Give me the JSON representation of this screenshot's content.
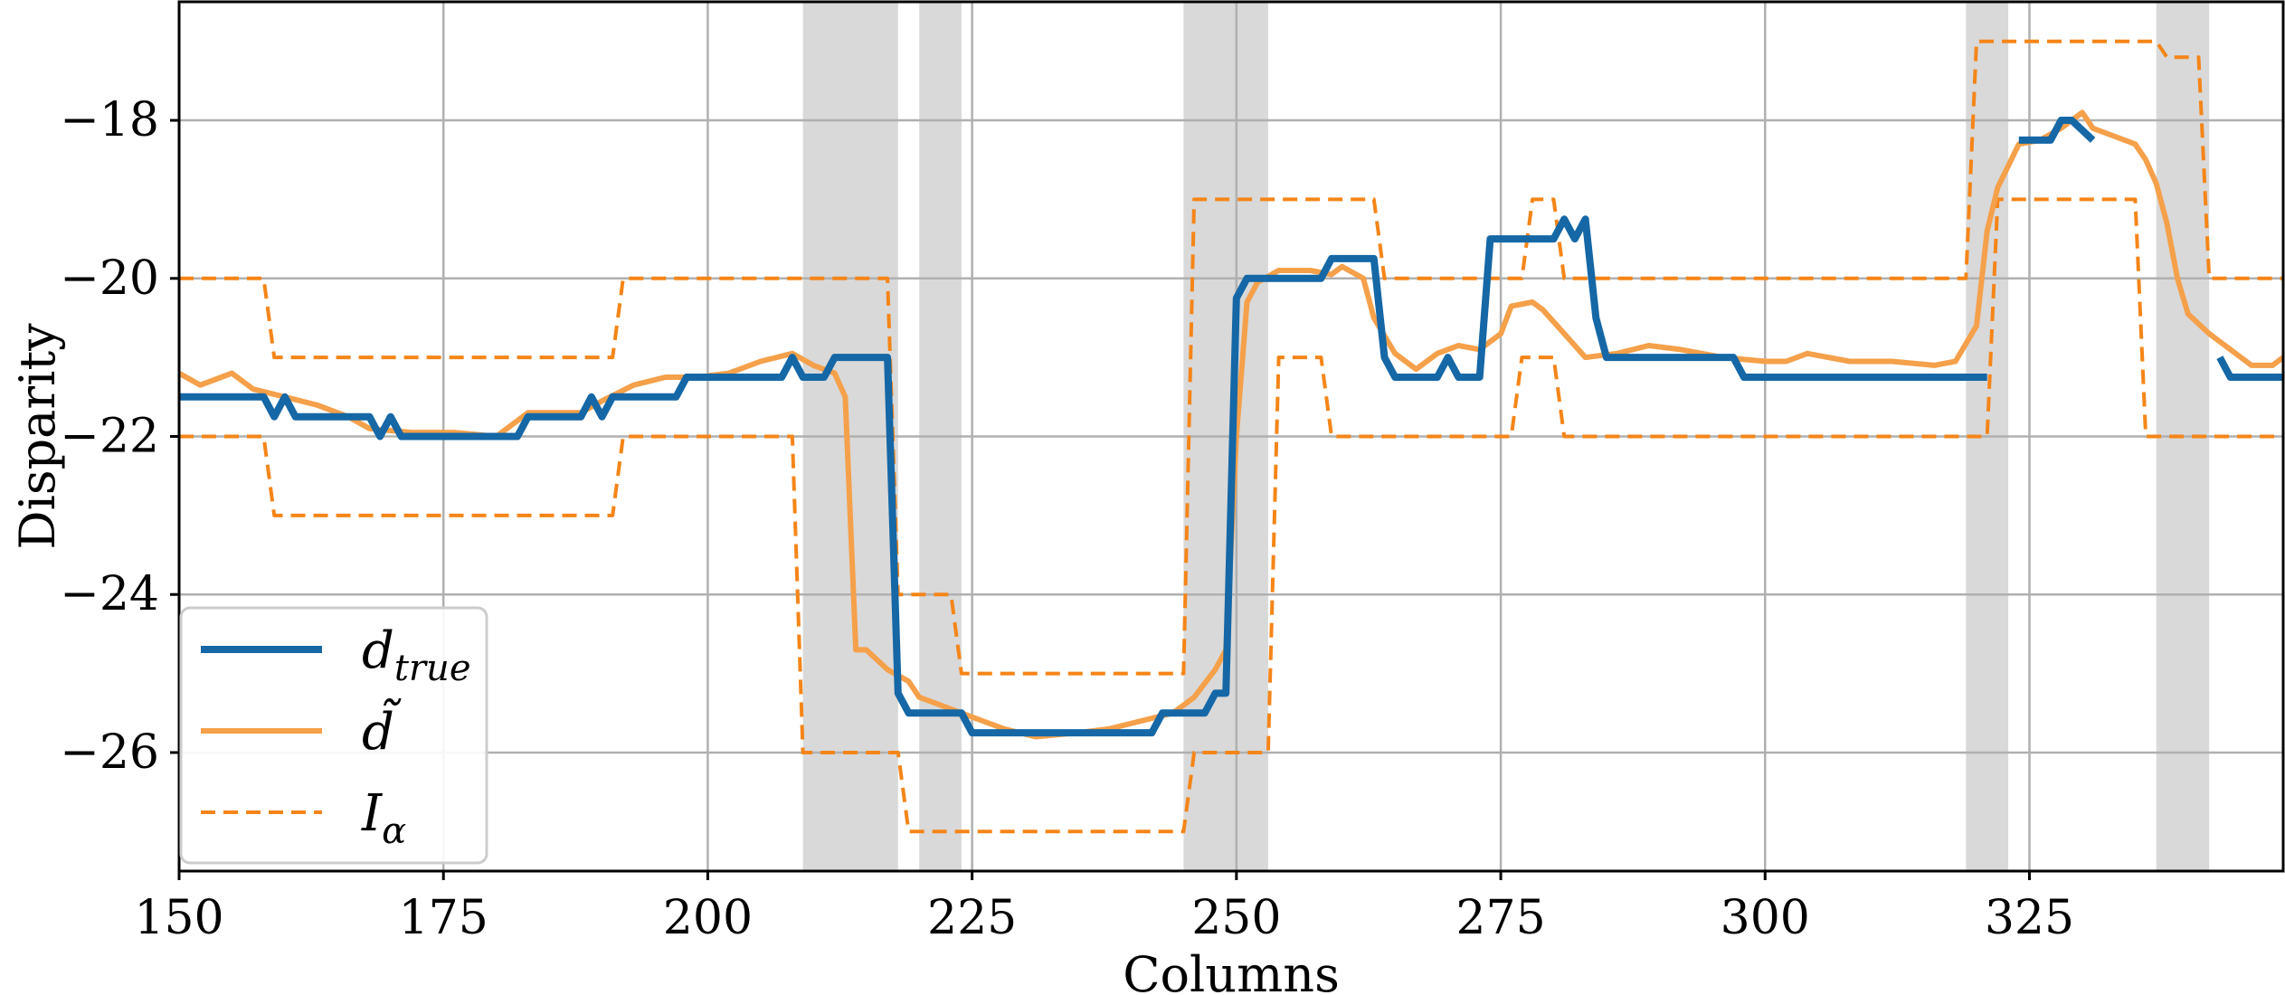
{
  "chart_data": {
    "type": "line",
    "xlabel": "Columns",
    "ylabel": "Disparity",
    "xlim": [
      150,
      349
    ],
    "ylim": [
      -27.5,
      -16.5
    ],
    "x_ticks": [
      150,
      175,
      200,
      225,
      250,
      275,
      300,
      325
    ],
    "x_tick_labels": [
      "150",
      "175",
      "200",
      "225",
      "250",
      "275",
      "300",
      "325"
    ],
    "y_ticks": [
      -26,
      -24,
      -22,
      -20,
      -18
    ],
    "y_tick_labels": [
      "−26",
      "−24",
      "−22",
      "−20",
      "−18"
    ],
    "grid": true,
    "legend_position": "lower-left",
    "colors": {
      "d_true": "#1567a6",
      "d_tilde": "#f5a04a",
      "interval": "#f58518",
      "shade": "#d9d9d9",
      "grid": "#b0b0b0"
    },
    "legend": [
      {
        "key": "d_true",
        "base": "d",
        "sub": "true",
        "style": "solid"
      },
      {
        "key": "d_tilde",
        "base": "d̃",
        "sub": "",
        "style": "solid"
      },
      {
        "key": "interval",
        "base": "I",
        "sub": "α",
        "style": "dashed"
      }
    ],
    "shaded_regions": [
      [
        209,
        218
      ],
      [
        220,
        224
      ],
      [
        245,
        253
      ],
      [
        319,
        323
      ],
      [
        337,
        342
      ]
    ],
    "series": [
      {
        "key": "d_true",
        "points": [
          [
            150,
            -21.5
          ],
          [
            158,
            -21.5
          ],
          [
            159,
            -21.75
          ],
          [
            160,
            -21.5
          ],
          [
            161,
            -21.75
          ],
          [
            168,
            -21.75
          ],
          [
            169,
            -22
          ],
          [
            170,
            -21.75
          ],
          [
            171,
            -22
          ],
          [
            182,
            -22
          ],
          [
            183,
            -21.75
          ],
          [
            188,
            -21.75
          ],
          [
            189,
            -21.5
          ],
          [
            190,
            -21.75
          ],
          [
            191,
            -21.5
          ],
          [
            197,
            -21.5
          ],
          [
            198,
            -21.25
          ],
          [
            207,
            -21.25
          ],
          [
            208,
            -21
          ],
          [
            209,
            -21.25
          ],
          [
            211,
            -21.25
          ],
          [
            212,
            -21
          ],
          [
            217,
            -21
          ],
          [
            218,
            -25.25
          ],
          [
            219,
            -25.5
          ],
          [
            224,
            -25.5
          ],
          [
            225,
            -25.75
          ],
          [
            242,
            -25.75
          ],
          [
            243,
            -25.5
          ],
          [
            247,
            -25.5
          ],
          [
            248,
            -25.25
          ],
          [
            249,
            -25.25
          ],
          [
            250,
            -20.25
          ],
          [
            251,
            -20
          ],
          [
            258,
            -20
          ],
          [
            259,
            -19.75
          ],
          [
            263,
            -19.75
          ],
          [
            264,
            -21
          ],
          [
            265,
            -21.25
          ],
          [
            269,
            -21.25
          ],
          [
            270,
            -21
          ],
          [
            271,
            -21.25
          ],
          [
            273,
            -21.25
          ],
          [
            274,
            -19.5
          ],
          [
            280,
            -19.5
          ],
          [
            281,
            -19.25
          ],
          [
            282,
            -19.5
          ],
          [
            283,
            -19.25
          ],
          [
            284,
            -20.5
          ],
          [
            285,
            -21
          ],
          [
            297,
            -21
          ],
          [
            298,
            -21.25
          ],
          [
            321,
            -21.25
          ],
          null,
          [
            324,
            -18.25
          ],
          [
            327,
            -18.25
          ],
          [
            328,
            -18
          ],
          [
            329,
            -18
          ],
          [
            331,
            -18.25
          ],
          null,
          [
            343,
            -21
          ],
          [
            344,
            -21.25
          ],
          [
            349,
            -21.25
          ]
        ]
      },
      {
        "key": "d_tilde",
        "points": [
          [
            150,
            -21.2
          ],
          [
            152,
            -21.35
          ],
          [
            155,
            -21.2
          ],
          [
            157,
            -21.4
          ],
          [
            160,
            -21.5
          ],
          [
            163,
            -21.6
          ],
          [
            166,
            -21.75
          ],
          [
            168,
            -21.9
          ],
          [
            172,
            -21.95
          ],
          [
            176,
            -21.95
          ],
          [
            180,
            -22
          ],
          [
            183,
            -21.7
          ],
          [
            188,
            -21.7
          ],
          [
            190,
            -21.55
          ],
          [
            193,
            -21.35
          ],
          [
            196,
            -21.25
          ],
          [
            199,
            -21.25
          ],
          [
            202,
            -21.2
          ],
          [
            205,
            -21.05
          ],
          [
            208,
            -20.95
          ],
          [
            210,
            -21.1
          ],
          [
            212,
            -21.2
          ],
          [
            213,
            -21.5
          ],
          [
            214,
            -24.7
          ],
          [
            215,
            -24.7
          ],
          [
            217,
            -24.95
          ],
          [
            219,
            -25.1
          ],
          [
            220,
            -25.3
          ],
          [
            222,
            -25.4
          ],
          [
            224,
            -25.5
          ],
          [
            226,
            -25.6
          ],
          [
            228,
            -25.7
          ],
          [
            231,
            -25.8
          ],
          [
            235,
            -25.75
          ],
          [
            238,
            -25.7
          ],
          [
            241,
            -25.6
          ],
          [
            244,
            -25.5
          ],
          [
            246,
            -25.3
          ],
          [
            248,
            -24.95
          ],
          [
            249,
            -24.7
          ],
          [
            250,
            -22
          ],
          [
            251,
            -20.3
          ],
          [
            252,
            -20.05
          ],
          [
            254,
            -19.9
          ],
          [
            257,
            -19.9
          ],
          [
            259,
            -19.95
          ],
          [
            260,
            -19.85
          ],
          [
            262,
            -20
          ],
          [
            263,
            -20.5
          ],
          [
            265,
            -20.95
          ],
          [
            267,
            -21.15
          ],
          [
            269,
            -20.95
          ],
          [
            271,
            -20.85
          ],
          [
            273,
            -20.9
          ],
          [
            275,
            -20.7
          ],
          [
            276,
            -20.35
          ],
          [
            278,
            -20.3
          ],
          [
            279,
            -20.4
          ],
          [
            281,
            -20.7
          ],
          [
            283,
            -21
          ],
          [
            286,
            -20.95
          ],
          [
            289,
            -20.85
          ],
          [
            292,
            -20.9
          ],
          [
            296,
            -21
          ],
          [
            300,
            -21.05
          ],
          [
            302,
            -21.05
          ],
          [
            304,
            -20.95
          ],
          [
            308,
            -21.05
          ],
          [
            312,
            -21.05
          ],
          [
            316,
            -21.1
          ],
          [
            318,
            -21.05
          ],
          [
            320,
            -20.6
          ],
          [
            321,
            -19.4
          ],
          [
            322,
            -18.85
          ],
          [
            324,
            -18.3
          ],
          [
            326,
            -18.25
          ],
          [
            328,
            -18.1
          ],
          [
            330,
            -17.9
          ],
          [
            331,
            -18.1
          ],
          [
            333,
            -18.2
          ],
          [
            335,
            -18.3
          ],
          [
            336,
            -18.5
          ],
          [
            337,
            -18.8
          ],
          [
            338,
            -19.3
          ],
          [
            339,
            -20
          ],
          [
            340,
            -20.45
          ],
          [
            342,
            -20.7
          ],
          [
            344,
            -20.9
          ],
          [
            346,
            -21.1
          ],
          [
            348,
            -21.1
          ],
          [
            349,
            -21
          ]
        ]
      },
      {
        "key": "interval_upper",
        "points": [
          [
            150,
            -20
          ],
          [
            158,
            -20
          ],
          [
            159,
            -21
          ],
          [
            191,
            -21
          ],
          [
            192,
            -20
          ],
          [
            217,
            -20
          ],
          [
            218,
            -24
          ],
          [
            223,
            -24
          ],
          [
            224,
            -25
          ],
          [
            245,
            -25
          ],
          [
            246,
            -19
          ],
          [
            263,
            -19
          ],
          [
            264,
            -20
          ],
          [
            277,
            -20
          ],
          [
            278,
            -19
          ],
          [
            280,
            -19
          ],
          [
            281,
            -20
          ],
          [
            319,
            -20
          ],
          [
            320,
            -17
          ],
          [
            337,
            -17
          ],
          [
            338,
            -17.2
          ],
          [
            341,
            -17.2
          ],
          [
            342,
            -20
          ],
          [
            349,
            -20
          ]
        ]
      },
      {
        "key": "interval_lower",
        "points": [
          [
            150,
            -22
          ],
          [
            158,
            -22
          ],
          [
            159,
            -23
          ],
          [
            191,
            -23
          ],
          [
            192,
            -22
          ],
          [
            208,
            -22
          ],
          [
            209,
            -26
          ],
          [
            218,
            -26
          ],
          [
            219,
            -27
          ],
          [
            245,
            -27
          ],
          [
            246,
            -26
          ],
          [
            253,
            -26
          ],
          [
            254,
            -21
          ],
          [
            258,
            -21
          ],
          [
            259,
            -22
          ],
          [
            276,
            -22
          ],
          [
            277,
            -21
          ],
          [
            280,
            -21
          ],
          [
            281,
            -22
          ],
          [
            321,
            -22
          ],
          [
            322,
            -19
          ],
          [
            335,
            -19
          ],
          [
            336,
            -22
          ],
          [
            349,
            -22
          ]
        ]
      }
    ]
  }
}
